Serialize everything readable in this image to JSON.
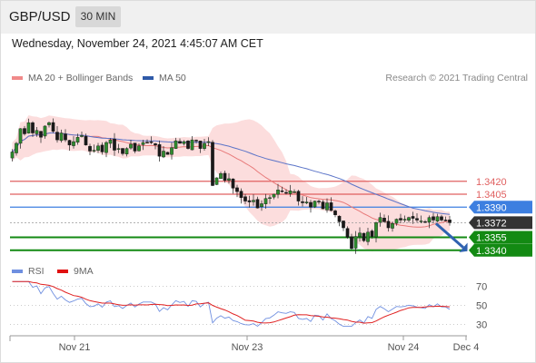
{
  "header": {
    "symbol": "GBP/USD",
    "timeframe": "30 MIN"
  },
  "datetime": "Wednesday, November 24, 2021 4:45:07 AM CET",
  "legend": {
    "ma20_label": "MA 20 + Bollinger Bands",
    "ma50_label": "MA 50",
    "credit": "Research © 2021 Trading Central"
  },
  "rsi_legend": {
    "rsi_label": "RSI",
    "ma9_label": "9MA"
  },
  "colors": {
    "candle_up": "#2e8b2e",
    "candle_down": "#1a1a1a",
    "bollinger": "#fbd2d2",
    "ma20": "#e87a7a",
    "ma50": "#5b74c8",
    "resistance": "#e06060",
    "pivot": "#3d7fe0",
    "support": "#138a13",
    "current": "#333333",
    "rsi": "#7090e0",
    "rsi_ma": "#e02020"
  },
  "chart_data": [
    {
      "type": "candlestick",
      "title": "GBP/USD",
      "timeframe": "30 MIN",
      "x_ticks": [
        "Nov 21",
        "Nov 23",
        "Nov 24",
        "Dec 4"
      ],
      "ylim": [
        1.3325,
        1.3525
      ],
      "closes": [
        1.3454,
        1.3464,
        1.3481,
        1.3475,
        1.3488,
        1.3476,
        1.3479,
        1.3471,
        1.3484,
        1.3488,
        1.3478,
        1.3468,
        1.3476,
        1.3468,
        1.3462,
        1.3466,
        1.3471,
        1.3473,
        1.3462,
        1.3455,
        1.3456,
        1.3461,
        1.3454,
        1.3465,
        1.3468,
        1.3456,
        1.3458,
        1.3452,
        1.3458,
        1.3463,
        1.3455,
        1.3461,
        1.3465,
        1.3465,
        1.3465,
        1.3462,
        1.3449,
        1.3455,
        1.3451,
        1.3459,
        1.3467,
        1.3464,
        1.3466,
        1.3458,
        1.3468,
        1.3467,
        1.3458,
        1.3464,
        1.3466,
        1.3415,
        1.3424,
        1.3429,
        1.3421,
        1.3423,
        1.3412,
        1.3408,
        1.3401,
        1.3397,
        1.3396,
        1.3398,
        1.3389,
        1.3394,
        1.34,
        1.3401,
        1.3405,
        1.341,
        1.3408,
        1.3407,
        1.3409,
        1.3408,
        1.3397,
        1.3395,
        1.3396,
        1.339,
        1.3397,
        1.3396,
        1.3388,
        1.3395,
        1.3386,
        1.3381,
        1.3373,
        1.3366,
        1.3355,
        1.3342,
        1.3356,
        1.336,
        1.3351,
        1.3361,
        1.3356,
        1.3372,
        1.3378,
        1.3373,
        1.3366,
        1.3371,
        1.3376,
        1.3375,
        1.3376,
        1.3378,
        1.3377,
        1.3375,
        1.3374,
        1.3373,
        1.3378,
        1.3375,
        1.3379,
        1.3375,
        1.3375,
        1.3372
      ],
      "series": [
        {
          "name": "MA 20 + Bollinger Bands",
          "values": []
        },
        {
          "name": "MA 50",
          "values": []
        }
      ],
      "levels": [
        {
          "label": "1.3420",
          "value": 1.342,
          "kind": "resistance"
        },
        {
          "label": "1.3405",
          "value": 1.3405,
          "kind": "resistance"
        },
        {
          "label": "1.3390",
          "value": 1.339,
          "kind": "pivot"
        },
        {
          "label": "1.3372",
          "value": 1.3372,
          "kind": "current"
        },
        {
          "label": "1.3355",
          "value": 1.3355,
          "kind": "support"
        },
        {
          "label": "1.3340",
          "value": 1.334,
          "kind": "support"
        }
      ],
      "forecast_arrow": {
        "from": 1.3372,
        "to": 1.334
      }
    },
    {
      "type": "line",
      "title": "RSI",
      "yticks": [
        70,
        50,
        30
      ],
      "ylim": [
        20,
        80
      ],
      "series": [
        {
          "name": "RSI",
          "values": []
        },
        {
          "name": "9MA",
          "values": []
        }
      ]
    }
  ]
}
